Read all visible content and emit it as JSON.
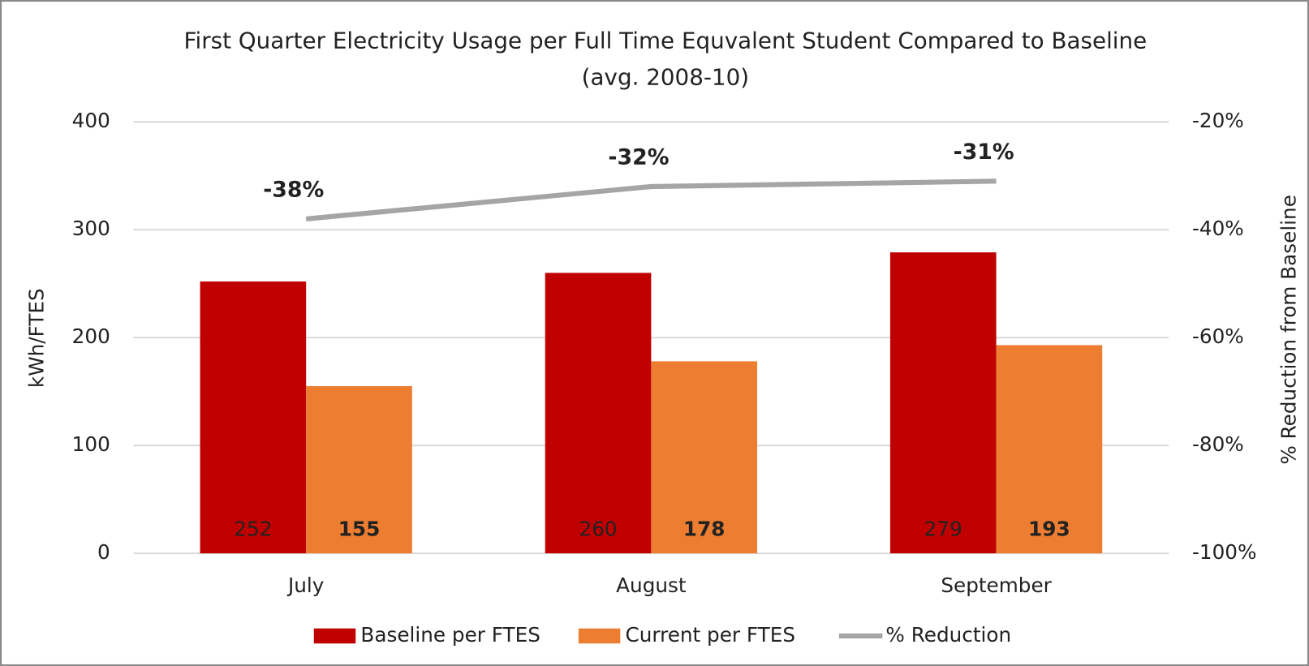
{
  "chart_data": {
    "type": "bar",
    "title": "First Quarter Electricity Usage per Full Time Equvalent Student Compared to Baseline",
    "subtitle": "(avg. 2008-10)",
    "y_label": "kWh/FTES",
    "y2_label": "% Reduction from Baseline",
    "categories": [
      "July",
      "August",
      "September"
    ],
    "series": [
      {
        "name": "Baseline per FTES",
        "color": "#c00000",
        "type": "bar",
        "values": [
          252,
          260,
          279
        ]
      },
      {
        "name": "Current per FTES",
        "color": "#ed7d31",
        "type": "bar",
        "values": [
          155,
          178,
          193
        ]
      },
      {
        "name": "% Reduction",
        "color": "#a5a5a5",
        "type": "line",
        "axis": "y2",
        "values": [
          -38,
          -32,
          -31
        ],
        "value_labels": [
          "-38%",
          "-32%",
          "-31%"
        ]
      }
    ],
    "ylim": [
      0,
      400
    ],
    "yticks": [
      0,
      100,
      200,
      300,
      400
    ],
    "y2lim": [
      -100,
      -20
    ],
    "y2ticks": [
      {
        "value": -100,
        "label": "-100%"
      },
      {
        "value": -80,
        "label": "-80%"
      },
      {
        "value": -60,
        "label": "-60%"
      },
      {
        "value": -40,
        "label": "-40%"
      },
      {
        "value": -20,
        "label": "-20%"
      }
    ],
    "grid": true,
    "legend": "bottom"
  }
}
